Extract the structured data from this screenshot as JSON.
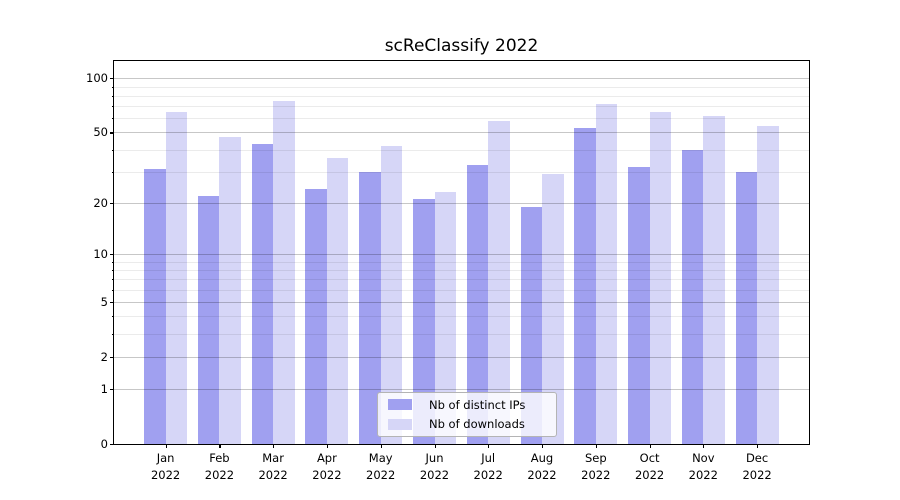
{
  "chart_data": {
    "type": "bar",
    "title": "scReClassify 2022",
    "categories": [
      "Jan 2022",
      "Feb 2022",
      "Mar 2022",
      "Apr 2022",
      "May 2022",
      "Jun 2022",
      "Jul 2022",
      "Aug 2022",
      "Sep 2022",
      "Oct 2022",
      "Nov 2022",
      "Dec 2022"
    ],
    "series": [
      {
        "name": "Nb of distinct IPs",
        "color": "#a0a0f0",
        "values": [
          31,
          22,
          43,
          24,
          30,
          21,
          33,
          19,
          53,
          32,
          40,
          30
        ]
      },
      {
        "name": "Nb of downloads",
        "color": "#d6d6f7",
        "values": [
          65,
          47,
          75,
          36,
          42,
          23,
          58,
          29,
          72,
          65,
          62,
          54
        ]
      }
    ],
    "yscale": "log1p",
    "ylim": [
      0,
      124
    ],
    "yticks": [
      0,
      1,
      2,
      5,
      10,
      20,
      50,
      100
    ],
    "yminor_ticks": [
      3,
      4,
      6,
      7,
      8,
      9,
      30,
      40,
      60,
      70,
      80,
      90
    ],
    "grid": true,
    "xlabel": "",
    "ylabel": "",
    "legend": {
      "position": "lower center"
    }
  }
}
